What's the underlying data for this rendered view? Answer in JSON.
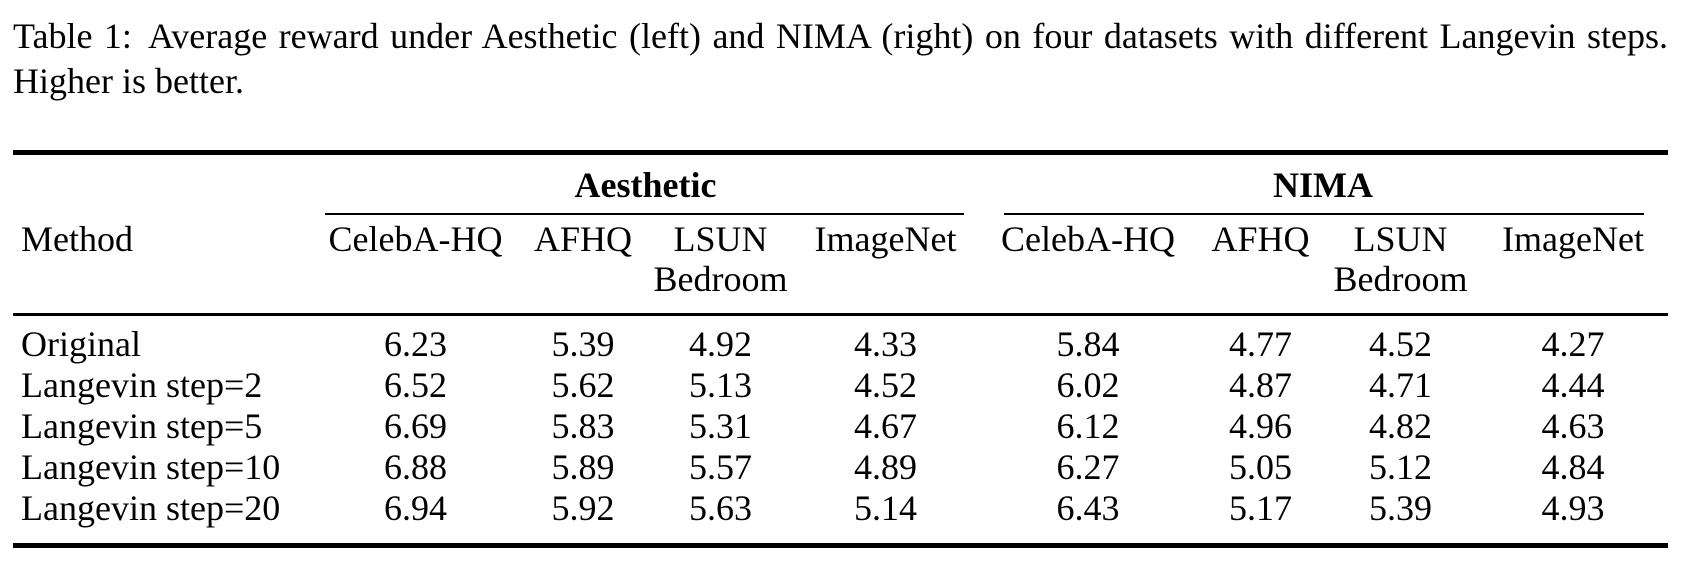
{
  "style": {
    "background": "#ffffff",
    "text_color": "#000000",
    "rule_color": "#000000"
  },
  "caption": {
    "label": "Table 1:",
    "text": "Average reward under Aesthetic (left) and NIMA (right) on four datasets with different Langevin steps. Higher is better."
  },
  "table": {
    "method_header": "Method",
    "groups": [
      {
        "label": "Aesthetic",
        "columns": [
          "CelebA-HQ",
          "AFHQ",
          "LSUN\nBedroom",
          "ImageNet"
        ]
      },
      {
        "label": "NIMA",
        "columns": [
          "CelebA-HQ",
          "AFHQ",
          "LSUN\nBedroom",
          "ImageNet"
        ]
      }
    ],
    "rows": [
      {
        "method": "Original",
        "aesthetic": [
          "6.23",
          "5.39",
          "4.92",
          "4.33"
        ],
        "nima": [
          "5.84",
          "4.77",
          "4.52",
          "4.27"
        ]
      },
      {
        "method": "Langevin step=2",
        "aesthetic": [
          "6.52",
          "5.62",
          "5.13",
          "4.52"
        ],
        "nima": [
          "6.02",
          "4.87",
          "4.71",
          "4.44"
        ]
      },
      {
        "method": "Langevin step=5",
        "aesthetic": [
          "6.69",
          "5.83",
          "5.31",
          "4.67"
        ],
        "nima": [
          "6.12",
          "4.96",
          "4.82",
          "4.63"
        ]
      },
      {
        "method": "Langevin step=10",
        "aesthetic": [
          "6.88",
          "5.89",
          "5.57",
          "4.89"
        ],
        "nima": [
          "6.27",
          "5.05",
          "5.12",
          "4.84"
        ]
      },
      {
        "method": "Langevin step=20",
        "aesthetic": [
          "6.94",
          "5.92",
          "5.63",
          "5.14"
        ],
        "nima": [
          "6.43",
          "5.17",
          "5.39",
          "4.93"
        ]
      }
    ]
  }
}
